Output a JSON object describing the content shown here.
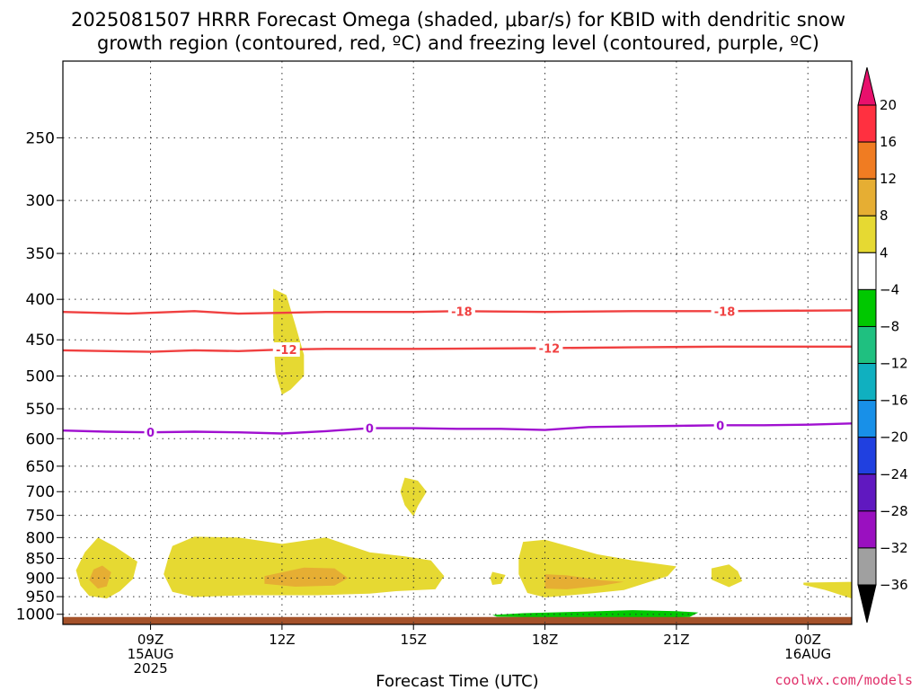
{
  "title_line1": "2025081507 HRRR Forecast Omega (shaded, μbar/s) for KBID with dendritic snow",
  "title_line2": "growth region (contoured, red, ºC) and freezing level (contoured, purple, ºC)",
  "credit": "coolwx.com/models",
  "chart_data": {
    "type": "heatmap",
    "xlabel": "Forecast Time (UTC)",
    "ylabel": "",
    "y_scale": "log",
    "y_reversed": true,
    "y_ticks": [
      250,
      300,
      350,
      400,
      450,
      500,
      550,
      600,
      650,
      700,
      750,
      800,
      850,
      900,
      950,
      1000
    ],
    "x_ticks": [
      {
        "hour": 9,
        "l1": "09Z",
        "l2": "15AUG",
        "l3": "2025"
      },
      {
        "hour": 12,
        "l1": "12Z",
        "l2": "",
        "l3": ""
      },
      {
        "hour": 15,
        "l1": "15Z",
        "l2": "",
        "l3": ""
      },
      {
        "hour": 18,
        "l1": "18Z",
        "l2": "",
        "l3": ""
      },
      {
        "hour": 21,
        "l1": "21Z",
        "l2": "",
        "l3": ""
      },
      {
        "hour": 24,
        "l1": "00Z",
        "l2": "16AUG",
        "l3": ""
      }
    ],
    "x_range_hours": [
      7,
      25
    ],
    "y_range_hpa": [
      200,
      1030
    ],
    "grid": true,
    "colorbar": {
      "labels": [
        "20",
        "16",
        "12",
        "8",
        "4",
        "−4",
        "−8",
        "−12",
        "−16",
        "−20",
        "−24",
        "−28",
        "−32",
        "−36"
      ],
      "colors": [
        "#ff3040",
        "#f07c22",
        "#e6ae33",
        "#e6d932",
        "#ffffff",
        "#00c800",
        "#1fc080",
        "#10b0c0",
        "#1890e8",
        "#2040e0",
        "#6018c0",
        "#9a10c0",
        "#a0a0a0"
      ],
      "top_color": "#e8106c",
      "bottom_color": "#000000"
    },
    "contours": [
      {
        "name": "-18",
        "color": "#f04040",
        "labels": [
          "-18",
          "-18"
        ],
        "points": [
          [
            7.0,
            415
          ],
          [
            8.5,
            417
          ],
          [
            10,
            414
          ],
          [
            11,
            417
          ],
          [
            12,
            416
          ],
          [
            13,
            415
          ],
          [
            15,
            415
          ],
          [
            16,
            414
          ],
          [
            18,
            415
          ],
          [
            20,
            414
          ],
          [
            22,
            414
          ],
          [
            25,
            413
          ]
        ],
        "label_hours": [
          16.1,
          22.1
        ]
      },
      {
        "name": "-12",
        "color": "#f04040",
        "labels": [
          "-12",
          "-12"
        ],
        "points": [
          [
            7.0,
            464
          ],
          [
            9,
            466
          ],
          [
            10,
            464
          ],
          [
            11,
            465
          ],
          [
            12,
            463
          ],
          [
            13,
            462
          ],
          [
            15,
            462
          ],
          [
            18,
            461
          ],
          [
            20,
            460
          ],
          [
            22,
            459
          ],
          [
            25,
            459
          ]
        ],
        "label_hours": [
          12.1,
          18.1
        ]
      },
      {
        "name": "0",
        "color": "#a010d0",
        "labels": [
          "0",
          "0",
          "0"
        ],
        "points": [
          [
            7.0,
            586
          ],
          [
            8,
            588
          ],
          [
            9,
            589
          ],
          [
            10,
            588
          ],
          [
            11,
            589
          ],
          [
            12,
            591
          ],
          [
            13,
            587
          ],
          [
            14,
            582
          ],
          [
            15,
            582
          ],
          [
            16,
            583
          ],
          [
            17,
            583
          ],
          [
            18,
            585
          ],
          [
            19,
            580
          ],
          [
            20,
            579
          ],
          [
            21,
            578
          ],
          [
            22,
            577
          ],
          [
            23,
            577
          ],
          [
            24,
            576
          ],
          [
            25,
            574
          ]
        ],
        "label_hours": [
          9.0,
          14.0,
          22.0
        ]
      }
    ],
    "omega_regions": [
      {
        "value": "4 to 8",
        "color": "#e6d932",
        "points": [
          [
            11.8,
            388
          ],
          [
            12.1,
            395
          ],
          [
            12.3,
            430
          ],
          [
            12.5,
            470
          ],
          [
            12.5,
            500
          ],
          [
            12.2,
            520
          ],
          [
            12.0,
            528
          ],
          [
            11.85,
            495
          ],
          [
            11.8,
            440
          ]
        ]
      },
      {
        "value": "4 to 8",
        "color": "#e6d932",
        "points": [
          [
            14.8,
            672
          ],
          [
            15.1,
            678
          ],
          [
            15.3,
            700
          ],
          [
            15.1,
            730
          ],
          [
            15.0,
            752
          ],
          [
            14.8,
            728
          ],
          [
            14.7,
            700
          ]
        ]
      },
      {
        "value": "4 to 8",
        "color": "#e6d932",
        "points": [
          [
            7.8,
            800
          ],
          [
            8.2,
            822
          ],
          [
            8.7,
            858
          ],
          [
            8.6,
            902
          ],
          [
            8.3,
            935
          ],
          [
            8.0,
            955
          ],
          [
            7.6,
            948
          ],
          [
            7.4,
            920
          ],
          [
            7.3,
            880
          ],
          [
            7.5,
            835
          ]
        ]
      },
      {
        "value": "4 to 8",
        "color": "#e6d932",
        "points": [
          [
            9.5,
            820
          ],
          [
            10.0,
            798
          ],
          [
            11.0,
            800
          ],
          [
            12.0,
            815
          ],
          [
            13.0,
            800
          ],
          [
            14.0,
            835
          ],
          [
            14.8,
            845
          ],
          [
            15.4,
            855
          ],
          [
            15.7,
            895
          ],
          [
            15.5,
            930
          ],
          [
            14.6,
            935
          ],
          [
            14.0,
            942
          ],
          [
            12.8,
            946
          ],
          [
            11.2,
            946
          ],
          [
            10.0,
            951
          ],
          [
            9.5,
            937
          ],
          [
            9.3,
            890
          ],
          [
            9.4,
            850
          ]
        ]
      },
      {
        "value": "4 to 8",
        "color": "#e6d932",
        "points": [
          [
            16.8,
            884
          ],
          [
            17.1,
            892
          ],
          [
            17.0,
            915
          ],
          [
            16.8,
            918
          ],
          [
            16.75,
            900
          ]
        ]
      },
      {
        "value": "4 to 8",
        "color": "#e6d932",
        "points": [
          [
            17.5,
            810
          ],
          [
            18.0,
            805
          ],
          [
            19.2,
            840
          ],
          [
            20.0,
            855
          ],
          [
            21.0,
            870
          ],
          [
            20.8,
            895
          ],
          [
            19.8,
            932
          ],
          [
            19.0,
            942
          ],
          [
            18.0,
            952
          ],
          [
            17.6,
            940
          ],
          [
            17.4,
            890
          ],
          [
            17.4,
            850
          ]
        ]
      },
      {
        "value": "4 to 8",
        "color": "#e6d932",
        "points": [
          [
            21.8,
            875
          ],
          [
            22.2,
            865
          ],
          [
            22.4,
            882
          ],
          [
            22.5,
            908
          ],
          [
            22.2,
            924
          ],
          [
            21.8,
            904
          ]
        ]
      },
      {
        "value": "4 to 8",
        "color": "#e6d932",
        "points": [
          [
            23.9,
            912
          ],
          [
            25,
            910
          ],
          [
            25,
            955
          ],
          [
            24.4,
            932
          ],
          [
            23.9,
            918
          ]
        ]
      },
      {
        "value": "8 to 12",
        "color": "#e6ae33",
        "points": [
          [
            7.9,
            868
          ],
          [
            8.1,
            885
          ],
          [
            8.0,
            922
          ],
          [
            7.8,
            928
          ],
          [
            7.6,
            905
          ],
          [
            7.7,
            878
          ]
        ]
      },
      {
        "value": "8 to 12",
        "color": "#e6ae33",
        "points": [
          [
            11.6,
            895
          ],
          [
            12.5,
            873
          ],
          [
            13.2,
            875
          ],
          [
            13.5,
            900
          ],
          [
            13.2,
            920
          ],
          [
            12.3,
            923
          ],
          [
            11.6,
            915
          ]
        ]
      },
      {
        "value": "8 to 12",
        "color": "#e6ae33",
        "points": [
          [
            18.0,
            890
          ],
          [
            18.5,
            893
          ],
          [
            19.3,
            906
          ],
          [
            19.8,
            910
          ],
          [
            19.3,
            920
          ],
          [
            18.5,
            930
          ],
          [
            18.0,
            928
          ]
        ]
      },
      {
        "value": "-4 to -8",
        "color": "#00c800",
        "points": [
          [
            16.8,
            1002
          ],
          [
            17.5,
            997
          ],
          [
            19.0,
            992
          ],
          [
            20.0,
            988
          ],
          [
            21.0,
            991
          ],
          [
            21.5,
            995
          ],
          [
            21.3,
            1008
          ],
          [
            20.0,
            1012
          ],
          [
            18.0,
            1010
          ],
          [
            16.9,
            1007
          ]
        ]
      }
    ],
    "ground": {
      "color": "#a5522a",
      "top_hpa": 1008
    }
  }
}
